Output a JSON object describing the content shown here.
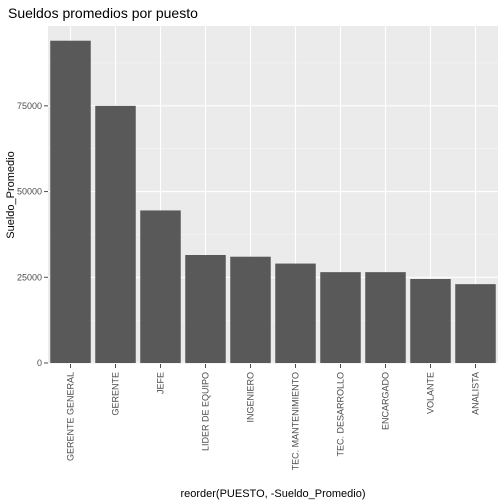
{
  "chart_data": {
    "type": "bar",
    "title": "Sueldos promedios por puesto",
    "xlabel": "reorder(PUESTO, -Sueldo_Promedio)",
    "ylabel": "Sueldo_Promedio",
    "categories": [
      "GERENTE GENERAL",
      "GERENTE",
      "JEFE",
      "LIDER DE EQUIPO",
      "INGENIERO",
      "TEC. MANTENIMIENTO",
      "TEC. DESARROLLO",
      "ENCARGADO",
      "VOLANTE",
      "ANALISTA"
    ],
    "values": [
      94000,
      75000,
      44500,
      31500,
      31000,
      29000,
      26500,
      26500,
      24500,
      23000
    ],
    "ylim": [
      0,
      98000
    ],
    "yticks": [
      0,
      25000,
      50000,
      75000
    ],
    "ytick_labels": [
      "0",
      "25000",
      "50000",
      "75000"
    ],
    "grid": true,
    "colors": {
      "bar": "#595959",
      "panel": "#ebebeb",
      "grid_major": "#ffffff",
      "grid_minor": "#f5f5f5",
      "tick": "#4d4d4d"
    }
  }
}
